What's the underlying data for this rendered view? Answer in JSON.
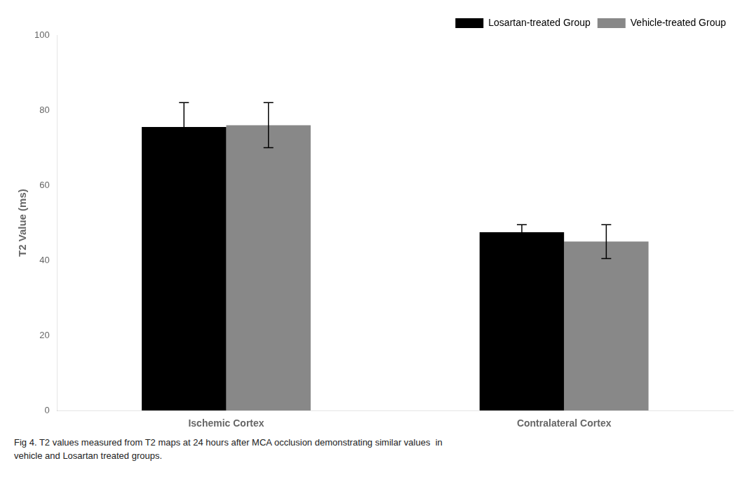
{
  "chart_data": {
    "type": "bar",
    "categories": [
      "Ischemic Cortex",
      "Contralateral Cortex"
    ],
    "series": [
      {
        "name": "Losartan-treated Group",
        "color": "#000000",
        "values": [
          75.5,
          47.5
        ],
        "errors": [
          6.5,
          2.0
        ]
      },
      {
        "name": "Vehicle-treated Group",
        "color": "#888888",
        "values": [
          76.0,
          45.0
        ],
        "errors": [
          6.0,
          4.5
        ]
      }
    ],
    "ylabel": "T2 Value (ms)",
    "ylim": [
      0,
      100
    ],
    "yticks": [
      0,
      20,
      40,
      60,
      80,
      100
    ],
    "grid": false,
    "legend": "upper right",
    "annotations": [
      "Fig 4. T2 values measured from T2 maps at 24 hours after MCA occlusion demonstrating similar values  in",
      "vehicle and Losartan treated groups."
    ]
  }
}
